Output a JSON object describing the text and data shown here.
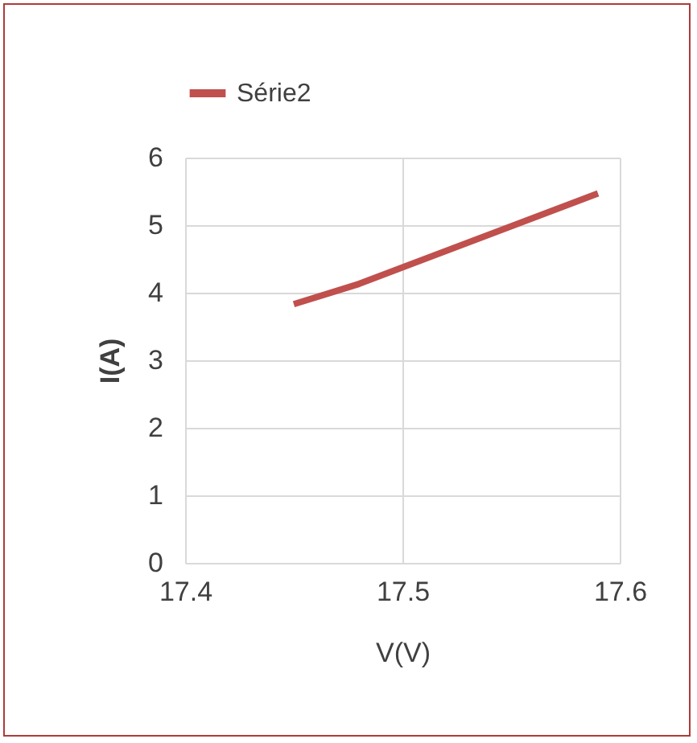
{
  "chart_data": {
    "type": "line",
    "xlabel": "V(V)",
    "ylabel": "I(A)",
    "x": [
      17.45,
      17.48,
      17.59
    ],
    "series": [
      {
        "name": "Série2",
        "color": "#c0504d",
        "values": [
          3.83,
          4.13,
          5.47
        ]
      }
    ],
    "xlim": [
      17.4,
      17.6
    ],
    "xticks": [
      {
        "value": 17.4,
        "label": "17.4"
      },
      {
        "value": 17.5,
        "label": "17.5"
      },
      {
        "value": 17.6,
        "label": "17.6"
      }
    ],
    "ylim": [
      0,
      6
    ],
    "yticks": [
      0,
      1,
      2,
      3,
      4,
      5,
      6
    ],
    "grid": true,
    "legend": "top",
    "marker": "none",
    "line_style": "solid"
  }
}
